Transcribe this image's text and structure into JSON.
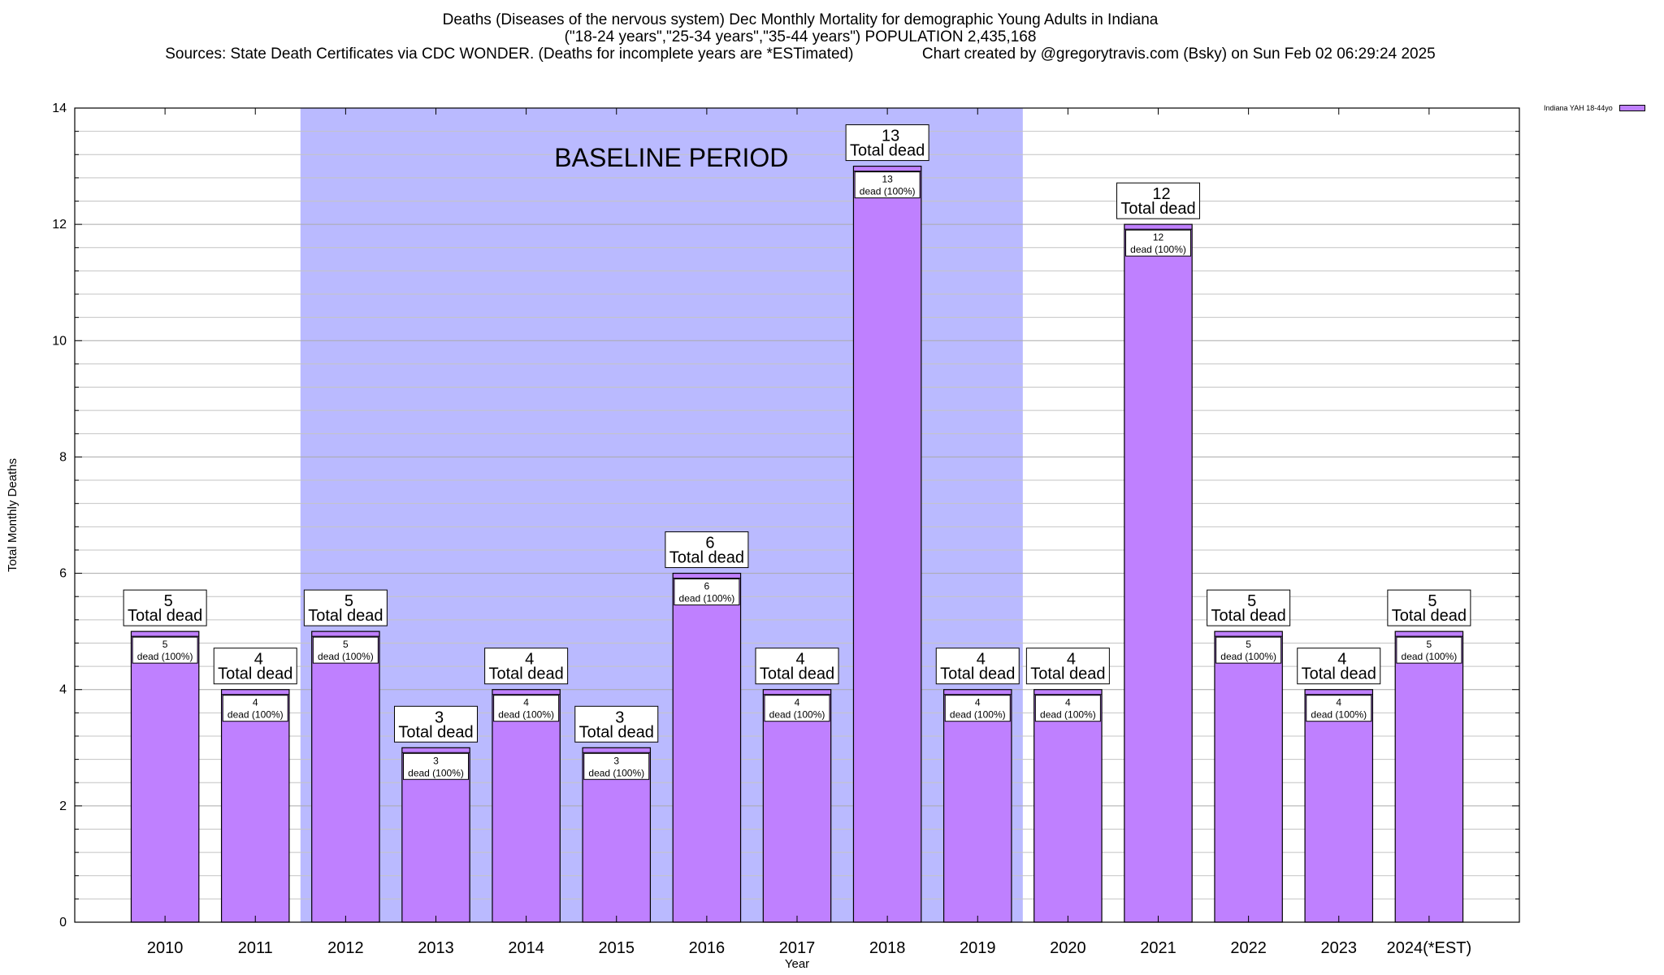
{
  "chart_data": {
    "type": "bar",
    "title_lines": [
      "Deaths (Diseases of the nervous system) Dec Monthly Mortality for demographic Young Adults in Indiana",
      "(\"18-24 years\",\"25-34 years\",\"35-44 years\") POPULATION 2,435,168",
      "Sources: State Death Certificates via CDC WONDER. (Deaths for incomplete years are *ESTimated)                Chart created by @gregorytravis.com (Bsky) on Sun Feb 02 06:29:24 2025"
    ],
    "xlabel": "Year",
    "ylabel": "Total Monthly Deaths",
    "ylim": [
      0,
      14
    ],
    "yticks": [
      "0",
      "2",
      "4",
      "6",
      "8",
      "10",
      "12",
      "14"
    ],
    "categories": [
      "2010",
      "2011",
      "2012",
      "2013",
      "2014",
      "2015",
      "2016",
      "2017",
      "2018",
      "2019",
      "2020",
      "2021",
      "2022",
      "2023",
      "2024(*EST)"
    ],
    "series": [
      {
        "name": "Indiana YAH 18-44yo",
        "color": "#bf80ff",
        "values": [
          5,
          4,
          5,
          3,
          4,
          3,
          6,
          4,
          13,
          4,
          4,
          12,
          5,
          4,
          5
        ]
      }
    ],
    "bar_top_label_suffix": "Total dead",
    "bar_inner_label_suffix": "dead (100%)",
    "baseline_region": {
      "label": "BASELINE PERIOD",
      "from": "2012",
      "to": "2019",
      "color": "#babaff"
    },
    "grid": true,
    "legend_position": "top-right"
  }
}
